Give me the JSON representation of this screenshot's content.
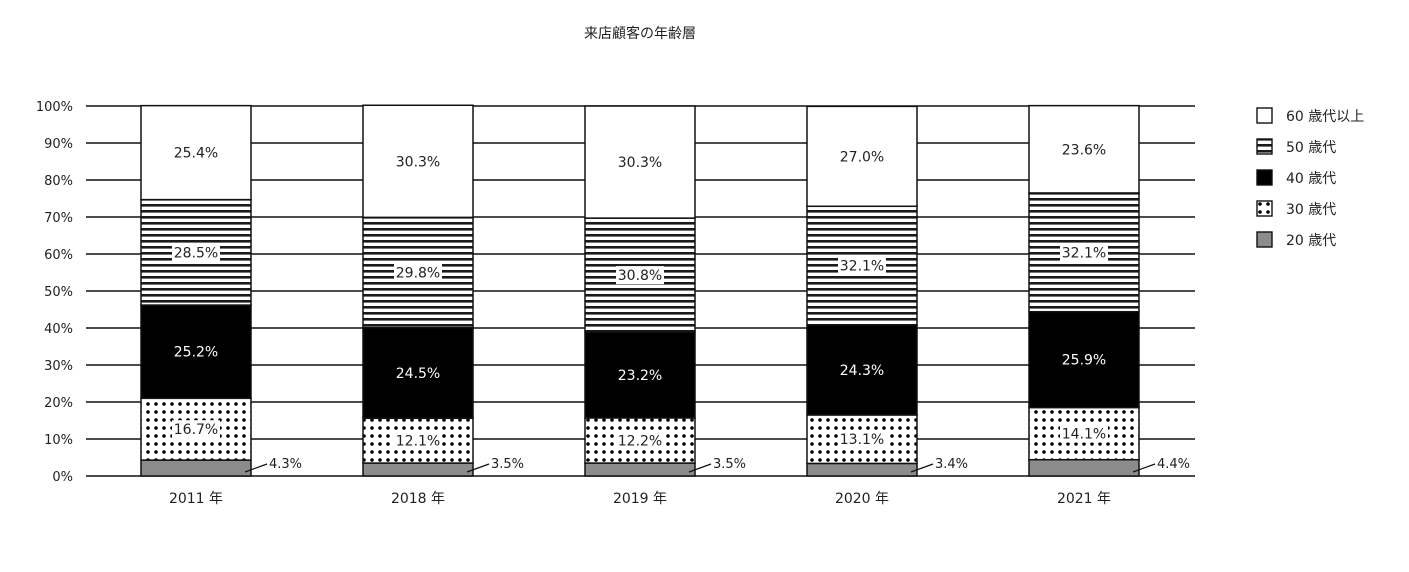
{
  "chart_data": {
    "type": "bar",
    "stacked": true,
    "title": "来店顧客の年齢層",
    "xlabel": "",
    "ylabel": "",
    "categories": [
      "2011 年",
      "2018 年",
      "2019 年",
      "2020 年",
      "2021 年"
    ],
    "ylim": [
      0,
      100
    ],
    "y_ticks": [
      "0%",
      "10%",
      "20%",
      "30%",
      "40%",
      "50%",
      "60%",
      "70%",
      "80%",
      "90%",
      "100%"
    ],
    "grid": true,
    "legend_position": "right",
    "series": [
      {
        "name": "20 歳代",
        "pattern": "gray",
        "values": [
          4.3,
          3.5,
          3.5,
          3.4,
          4.4
        ],
        "labels": [
          "4.3%",
          "3.5%",
          "3.5%",
          "3.4%",
          "4.4%"
        ]
      },
      {
        "name": "30 歳代",
        "pattern": "dots",
        "values": [
          16.7,
          12.1,
          12.2,
          13.1,
          14.1
        ],
        "labels": [
          "16.7%",
          "12.1%",
          "12.2%",
          "13.1%",
          "14.1%"
        ]
      },
      {
        "name": "40 歳代",
        "pattern": "black",
        "values": [
          25.2,
          24.5,
          23.2,
          24.3,
          25.9
        ],
        "labels": [
          "25.2%",
          "24.5%",
          "23.2%",
          "24.3%",
          "25.9%"
        ]
      },
      {
        "name": "50 歳代",
        "pattern": "hstripes",
        "values": [
          28.5,
          29.8,
          30.8,
          32.1,
          32.1
        ],
        "labels": [
          "28.5%",
          "29.8%",
          "30.8%",
          "32.1%",
          "32.1%"
        ]
      },
      {
        "name": "60 歳代以上",
        "pattern": "white",
        "values": [
          25.4,
          30.3,
          30.3,
          27.0,
          23.6
        ],
        "labels": [
          "25.4%",
          "30.3%",
          "30.3%",
          "27.0%",
          "23.6%"
        ]
      }
    ],
    "legend_order": [
      "60 歳代以上",
      "50 歳代",
      "40 歳代",
      "30 歳代",
      "20 歳代"
    ],
    "colors": {
      "gray": "#8c8c8c",
      "black": "#000000",
      "white": "#ffffff",
      "line": "#111111"
    }
  }
}
